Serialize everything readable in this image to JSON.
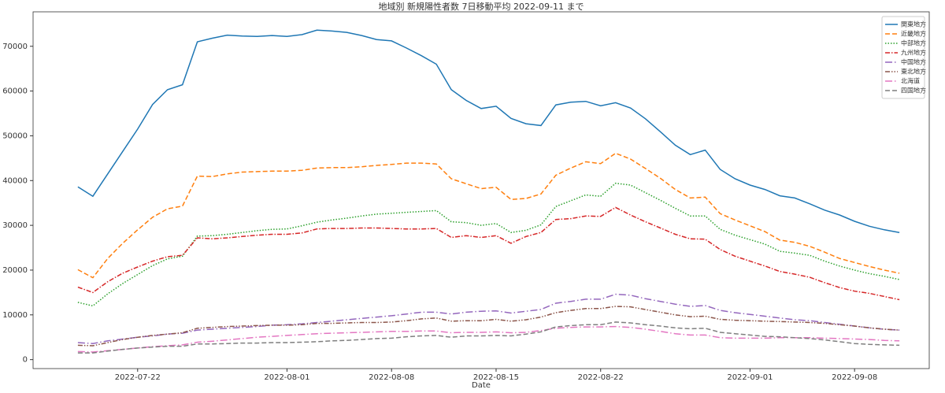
{
  "chart_data": {
    "type": "line",
    "title": "地域別 新規陽性者数 7日移動平均 2022-09-11 まで",
    "xlabel": "Date",
    "x": [
      "2022-07-18",
      "2022-07-19",
      "2022-07-20",
      "2022-07-21",
      "2022-07-22",
      "2022-07-23",
      "2022-07-24",
      "2022-07-25",
      "2022-07-26",
      "2022-07-27",
      "2022-07-28",
      "2022-07-29",
      "2022-07-30",
      "2022-07-31",
      "2022-08-01",
      "2022-08-02",
      "2022-08-03",
      "2022-08-04",
      "2022-08-05",
      "2022-08-06",
      "2022-08-07",
      "2022-08-08",
      "2022-08-09",
      "2022-08-10",
      "2022-08-11",
      "2022-08-12",
      "2022-08-13",
      "2022-08-14",
      "2022-08-15",
      "2022-08-16",
      "2022-08-17",
      "2022-08-18",
      "2022-08-19",
      "2022-08-20",
      "2022-08-21",
      "2022-08-22",
      "2022-08-23",
      "2022-08-24",
      "2022-08-25",
      "2022-08-26",
      "2022-08-27",
      "2022-08-28",
      "2022-08-29",
      "2022-08-30",
      "2022-08-31",
      "2022-09-01",
      "2022-09-02",
      "2022-09-03",
      "2022-09-04",
      "2022-09-05",
      "2022-09-06",
      "2022-09-07",
      "2022-09-08",
      "2022-09-09",
      "2022-09-10",
      "2022-09-11"
    ],
    "xlim": [
      "2022-07-15",
      "2022-09-13"
    ],
    "xticks": [
      "2022-07-22",
      "2022-08-01",
      "2022-08-08",
      "2022-08-15",
      "2022-08-22",
      "2022-09-01",
      "2022-09-08"
    ],
    "ylim": [
      -2000,
      77700
    ],
    "yticks": [
      0,
      10000,
      20000,
      30000,
      40000,
      50000,
      60000,
      70000
    ],
    "grid": false,
    "legend": "upper right",
    "series": [
      {
        "name": "関東地方",
        "color": "#1f77b4",
        "dash": "solid",
        "values": [
          38600,
          36500,
          41500,
          46500,
          51500,
          57000,
          60300,
          61400,
          71000,
          71800,
          72500,
          72300,
          72200,
          72400,
          72200,
          72600,
          73600,
          73400,
          73100,
          72400,
          71500,
          71200,
          69600,
          67900,
          66000,
          60300,
          57900,
          56100,
          56600,
          53900,
          52700,
          52300,
          56900,
          57500,
          57700,
          56700,
          57400,
          56200,
          53800,
          50900,
          47900,
          45800,
          46800,
          42500,
          40400,
          39000,
          38000,
          36600,
          36100,
          34800,
          33400,
          32300,
          30900,
          29800,
          29000,
          28400
        ]
      },
      {
        "name": "近畿地方",
        "color": "#ff7f0e",
        "dash": "dashed",
        "values": [
          20100,
          18300,
          22600,
          26000,
          29000,
          31800,
          33700,
          34300,
          41000,
          40900,
          41500,
          41900,
          42000,
          42100,
          42100,
          42300,
          42800,
          42900,
          42900,
          43100,
          43400,
          43600,
          43900,
          43900,
          43700,
          40400,
          39300,
          38200,
          38500,
          35800,
          36000,
          37000,
          41200,
          42800,
          44200,
          43800,
          46100,
          44800,
          42700,
          40500,
          38000,
          36100,
          36300,
          32600,
          31200,
          29900,
          28600,
          26700,
          26200,
          25300,
          24000,
          22600,
          21700,
          20800,
          20000,
          19300
        ]
      },
      {
        "name": "中部地方",
        "color": "#2ca02c",
        "dash": "dotted",
        "values": [
          12800,
          12000,
          14700,
          17000,
          19000,
          21000,
          22500,
          23100,
          27600,
          27700,
          28000,
          28400,
          28800,
          29100,
          29200,
          29900,
          30700,
          31200,
          31600,
          32100,
          32500,
          32700,
          32900,
          33100,
          33300,
          30800,
          30600,
          30000,
          30400,
          28400,
          28900,
          30100,
          34200,
          35500,
          36800,
          36500,
          39400,
          39000,
          37300,
          35600,
          33800,
          32100,
          32100,
          29100,
          27800,
          26800,
          25800,
          24200,
          23800,
          23300,
          22000,
          20900,
          20000,
          19200,
          18600,
          17900
        ]
      },
      {
        "name": "九州地方",
        "color": "#d62728",
        "dash": "dashdot",
        "values": [
          16200,
          15000,
          17400,
          19300,
          20700,
          22000,
          23000,
          23300,
          27200,
          27000,
          27200,
          27500,
          27800,
          28000,
          28000,
          28300,
          29200,
          29300,
          29300,
          29400,
          29400,
          29300,
          29200,
          29200,
          29300,
          27300,
          27700,
          27300,
          27700,
          26000,
          27500,
          28400,
          31300,
          31500,
          32100,
          32000,
          34000,
          32300,
          30800,
          29400,
          28000,
          27000,
          26900,
          24600,
          23100,
          22000,
          20900,
          19700,
          19100,
          18400,
          17200,
          16100,
          15300,
          14800,
          14100,
          13400
        ]
      },
      {
        "name": "中国地方",
        "color": "#9467bd",
        "dash": "longdashdot",
        "values": [
          3800,
          3600,
          4200,
          4600,
          5000,
          5300,
          5700,
          5900,
          6600,
          6800,
          7000,
          7200,
          7400,
          7700,
          7800,
          8000,
          8300,
          8600,
          8900,
          9200,
          9500,
          9800,
          10200,
          10600,
          10600,
          10200,
          10600,
          10800,
          10900,
          10400,
          10800,
          11200,
          12600,
          13000,
          13500,
          13500,
          14600,
          14400,
          13600,
          13000,
          12400,
          11900,
          12100,
          11000,
          10500,
          10100,
          9700,
          9300,
          8900,
          8700,
          8300,
          7900,
          7500,
          7100,
          6800,
          6600
        ]
      },
      {
        "name": "東北地方",
        "color": "#8c564b",
        "dash": "dashdotdot",
        "values": [
          3200,
          3100,
          3800,
          4500,
          5000,
          5400,
          5700,
          6000,
          7000,
          7200,
          7400,
          7500,
          7600,
          7700,
          7700,
          7800,
          8100,
          8100,
          8200,
          8300,
          8300,
          8400,
          8700,
          9100,
          9300,
          8600,
          8700,
          8700,
          9000,
          8600,
          8900,
          9500,
          10500,
          11000,
          11400,
          11400,
          11900,
          11800,
          11200,
          10600,
          10000,
          9600,
          9700,
          9000,
          8800,
          8700,
          8600,
          8500,
          8400,
          8300,
          8100,
          7800,
          7500,
          7100,
          6800,
          6600
        ]
      },
      {
        "name": "北海道",
        "color": "#e377c2",
        "dash": "longdashdot",
        "values": [
          1800,
          1700,
          2000,
          2300,
          2600,
          2900,
          3100,
          3300,
          3900,
          4100,
          4400,
          4700,
          5000,
          5200,
          5400,
          5600,
          5800,
          5900,
          6000,
          6100,
          6200,
          6300,
          6300,
          6400,
          6400,
          6000,
          6100,
          6100,
          6200,
          6000,
          6100,
          6500,
          7000,
          7200,
          7300,
          7300,
          7400,
          7200,
          6800,
          6300,
          5800,
          5500,
          5500,
          4900,
          4800,
          4800,
          4800,
          4900,
          4900,
          4900,
          4800,
          4700,
          4600,
          4500,
          4300,
          4200
        ]
      },
      {
        "name": "四国地方",
        "color": "#7f7f7f",
        "dash": "dashed",
        "values": [
          1500,
          1500,
          1900,
          2300,
          2600,
          2800,
          3000,
          3000,
          3500,
          3500,
          3600,
          3700,
          3700,
          3800,
          3800,
          3900,
          4000,
          4200,
          4300,
          4500,
          4700,
          4800,
          5100,
          5300,
          5400,
          5000,
          5300,
          5300,
          5400,
          5300,
          5700,
          6200,
          7300,
          7600,
          7800,
          7800,
          8400,
          8200,
          7800,
          7500,
          7100,
          6900,
          7000,
          6100,
          5800,
          5500,
          5200,
          5100,
          4900,
          4700,
          4400,
          4000,
          3600,
          3400,
          3300,
          3200
        ]
      }
    ]
  }
}
